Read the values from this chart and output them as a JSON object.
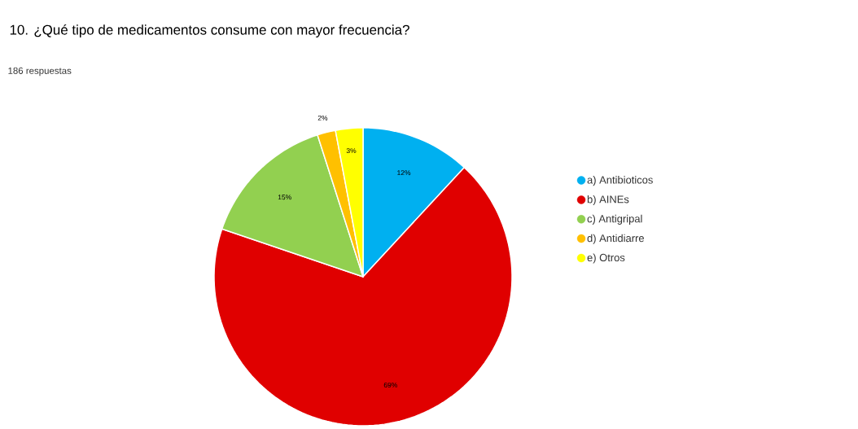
{
  "chart_data": {
    "type": "pie",
    "title": "10. ¿Qué tipo de medicamentos consume con mayor frecuencia?",
    "subtitle": "186 respuestas",
    "categories": [
      "a) Antibioticos",
      "b) AINEs",
      "c) Antigripal",
      "d) Antidiarre",
      "e) Otros"
    ],
    "values": [
      12,
      69,
      15,
      2,
      3
    ],
    "colors": [
      "#00b0f0",
      "#e00000",
      "#92d050",
      "#ffc000",
      "#ffff00"
    ],
    "value_labels": [
      "12%",
      "69%",
      "15%",
      "2%",
      "3%"
    ],
    "legend": "right"
  }
}
